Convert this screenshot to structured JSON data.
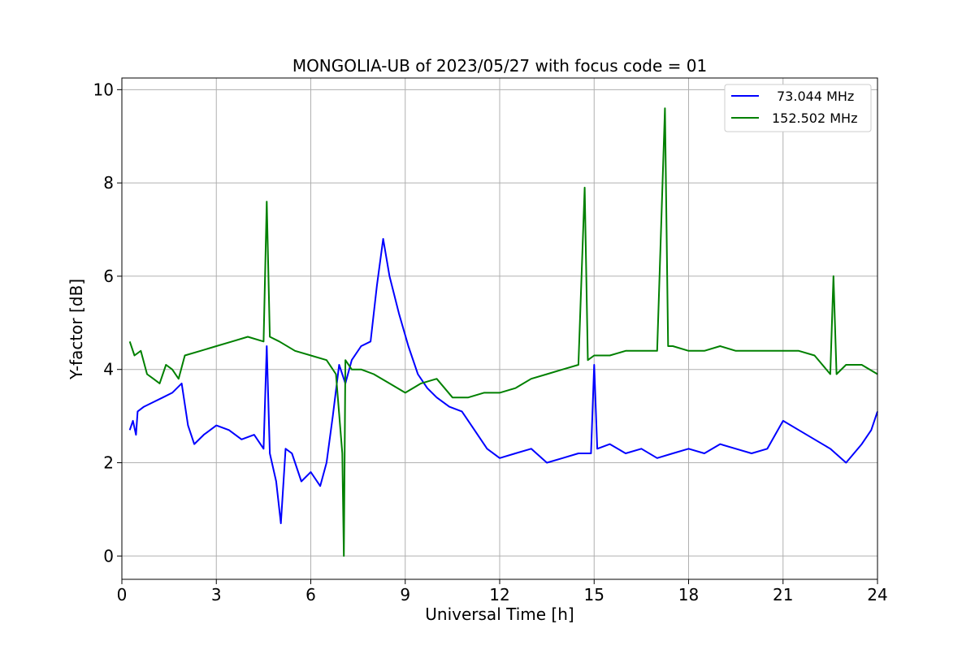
{
  "chart_data": {
    "type": "line",
    "title": "MONGOLIA-UB of 2023/05/27 with focus code = 01",
    "xlabel": "Universal Time [h]",
    "ylabel": "Y-factor [dB]",
    "xlim": [
      0,
      24
    ],
    "ylim": [
      -0.5,
      10.25
    ],
    "xticks": [
      "0",
      "3",
      "6",
      "9",
      "12",
      "15",
      "18",
      "21",
      "24"
    ],
    "yticks": [
      "0",
      "2",
      "4",
      "6",
      "8",
      "10"
    ],
    "grid": true,
    "legend_position": "top-right",
    "series": [
      {
        "name": "73.044 MHz",
        "color": "#0000ff",
        "x": [
          0.25,
          0.35,
          0.45,
          0.5,
          0.7,
          1.0,
          1.3,
          1.6,
          1.9,
          2.1,
          2.3,
          2.6,
          3.0,
          3.4,
          3.8,
          4.2,
          4.5,
          4.6,
          4.7,
          4.9,
          5.05,
          5.2,
          5.4,
          5.7,
          6.0,
          6.3,
          6.5,
          6.7,
          6.9,
          7.1,
          7.3,
          7.6,
          7.9,
          8.1,
          8.3,
          8.5,
          8.8,
          9.1,
          9.4,
          9.7,
          10.0,
          10.4,
          10.8,
          11.2,
          11.6,
          12.0,
          12.5,
          13.0,
          13.5,
          14.0,
          14.5,
          14.9,
          15.0,
          15.1,
          15.5,
          16.0,
          16.5,
          17.0,
          17.5,
          18.0,
          18.5,
          19.0,
          19.5,
          20.0,
          20.5,
          21.0,
          21.5,
          22.0,
          22.5,
          23.0,
          23.5,
          23.8,
          24.0
        ],
        "values": [
          2.7,
          2.9,
          2.6,
          3.1,
          3.2,
          3.3,
          3.4,
          3.5,
          3.7,
          2.8,
          2.4,
          2.6,
          2.8,
          2.7,
          2.5,
          2.6,
          2.3,
          4.5,
          2.2,
          1.6,
          0.7,
          2.3,
          2.2,
          1.6,
          1.8,
          1.5,
          2.0,
          3.0,
          4.1,
          3.7,
          4.2,
          4.5,
          4.6,
          5.8,
          6.8,
          6.0,
          5.2,
          4.5,
          3.9,
          3.6,
          3.4,
          3.2,
          3.1,
          2.7,
          2.3,
          2.1,
          2.2,
          2.3,
          2.0,
          2.1,
          2.2,
          2.2,
          4.1,
          2.3,
          2.4,
          2.2,
          2.3,
          2.1,
          2.2,
          2.3,
          2.2,
          2.4,
          2.3,
          2.2,
          2.3,
          2.9,
          2.7,
          2.5,
          2.3,
          2.0,
          2.4,
          2.7,
          3.1
        ]
      },
      {
        "name": "152.502 MHz",
        "color": "#008000",
        "x": [
          0.25,
          0.4,
          0.6,
          0.8,
          1.0,
          1.2,
          1.4,
          1.6,
          1.8,
          2.0,
          2.5,
          3.0,
          3.5,
          4.0,
          4.5,
          4.6,
          4.7,
          5.0,
          5.5,
          6.0,
          6.5,
          6.8,
          7.0,
          7.05,
          7.1,
          7.3,
          7.6,
          8.0,
          8.5,
          9.0,
          9.5,
          10.0,
          10.5,
          11.0,
          11.5,
          12.0,
          12.5,
          13.0,
          13.5,
          14.0,
          14.5,
          14.7,
          14.8,
          15.0,
          15.5,
          16.0,
          16.5,
          17.0,
          17.25,
          17.35,
          17.5,
          18.0,
          18.5,
          19.0,
          19.5,
          20.0,
          20.5,
          21.0,
          21.5,
          22.0,
          22.5,
          22.6,
          22.7,
          23.0,
          23.5,
          24.0
        ],
        "values": [
          4.6,
          4.3,
          4.4,
          3.9,
          3.8,
          3.7,
          4.1,
          4.0,
          3.8,
          4.3,
          4.4,
          4.5,
          4.6,
          4.7,
          4.6,
          7.6,
          4.7,
          4.6,
          4.4,
          4.3,
          4.2,
          3.9,
          2.2,
          0.0,
          4.2,
          4.0,
          4.0,
          3.9,
          3.7,
          3.5,
          3.7,
          3.8,
          3.4,
          3.4,
          3.5,
          3.5,
          3.6,
          3.8,
          3.9,
          4.0,
          4.1,
          7.9,
          4.2,
          4.3,
          4.3,
          4.4,
          4.4,
          4.4,
          9.6,
          4.5,
          4.5,
          4.4,
          4.4,
          4.5,
          4.4,
          4.4,
          4.4,
          4.4,
          4.4,
          4.3,
          3.9,
          6.0,
          3.9,
          4.1,
          4.1,
          3.9
        ]
      }
    ]
  }
}
